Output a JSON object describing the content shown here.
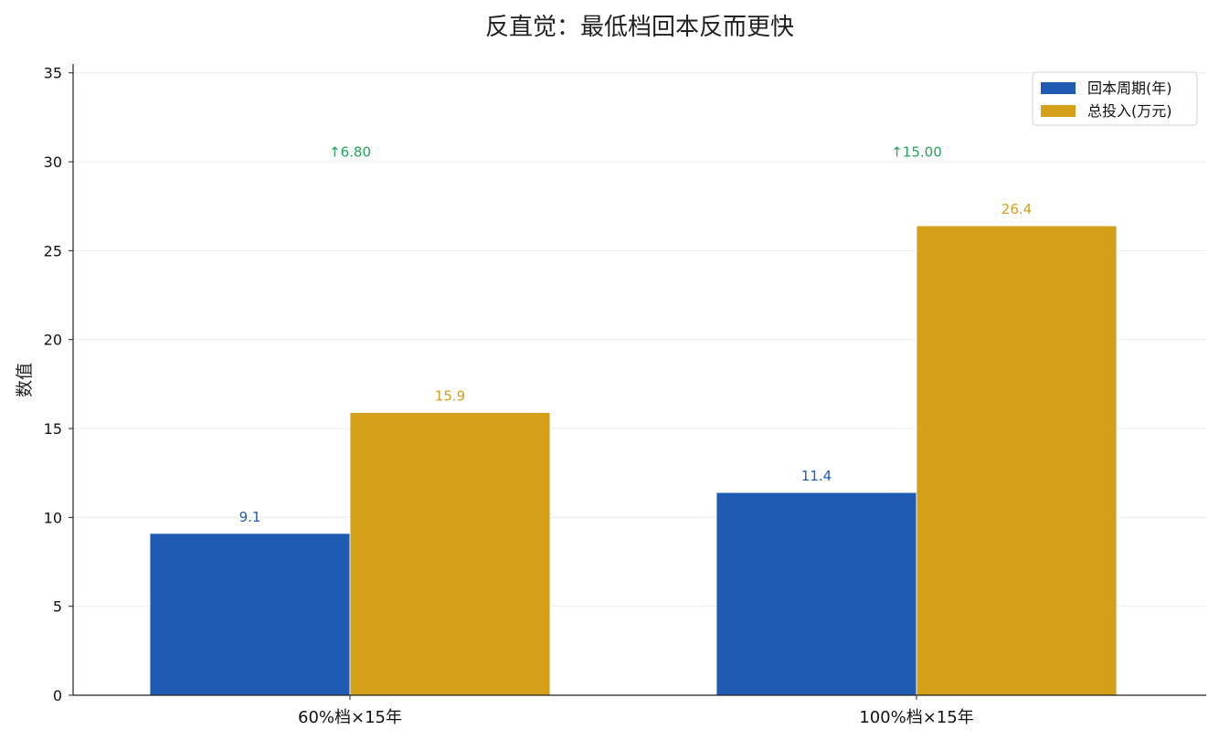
{
  "chart_data": {
    "type": "bar",
    "title": "反直觉：最低档回本反而更快",
    "xlabel": "",
    "ylabel": "数值",
    "ylim": [
      0,
      35.5
    ],
    "yticks": [
      0,
      5,
      10,
      15,
      20,
      25,
      30,
      35
    ],
    "grid": true,
    "legend_position": "top-right",
    "categories": [
      "60%档×15年",
      "100%档×15年"
    ],
    "series": [
      {
        "name": "回本周期(年)",
        "values": [
          9.1,
          11.4
        ],
        "labels": [
          "9.1",
          "11.4"
        ],
        "color": "#1f5bb2"
      },
      {
        "name": "总投入(万元)",
        "values": [
          15.9,
          26.4
        ],
        "labels": [
          "15.9",
          "26.4"
        ],
        "color": "#d4a01a"
      }
    ],
    "annotations": [
      {
        "text": "↑6.80",
        "category": 0,
        "y": 30.5,
        "color": "#22a55a"
      },
      {
        "text": "↑15.00",
        "category": 1,
        "y": 30.5,
        "color": "#22a55a"
      }
    ]
  }
}
